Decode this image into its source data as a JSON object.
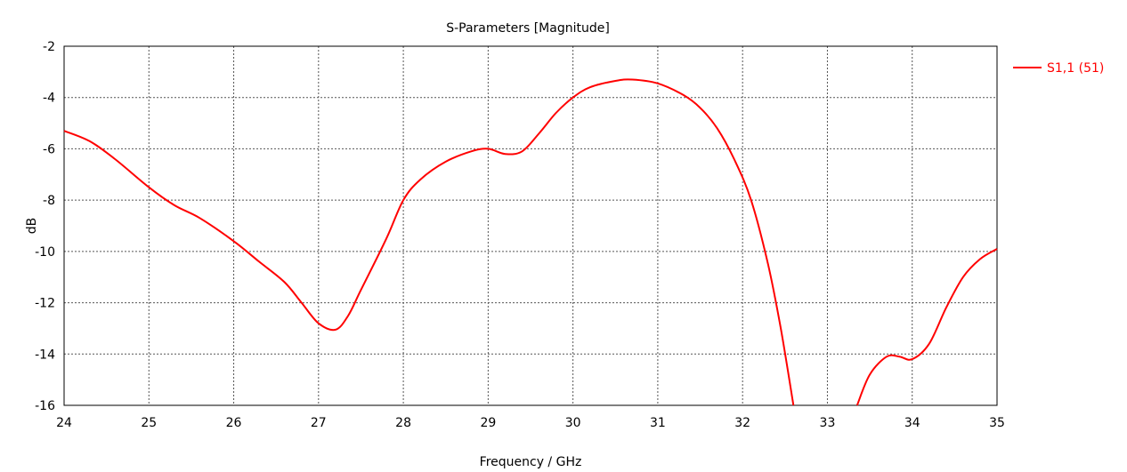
{
  "chart_data": {
    "type": "line",
    "title": "S-Parameters [Magnitude]",
    "xlabel": "Frequency / GHz",
    "ylabel": "dB",
    "xlim": [
      24,
      35
    ],
    "ylim": [
      -16,
      -2
    ],
    "xticks": [
      "24",
      "25",
      "26",
      "27",
      "28",
      "29",
      "30",
      "31",
      "32",
      "33",
      "34",
      "35"
    ],
    "yticks": [
      "-2",
      "-4",
      "-6",
      "-8",
      "-10",
      "-12",
      "-14",
      "-16"
    ],
    "grid": true,
    "legend_position": "right",
    "series": [
      {
        "name": "S1,1 (51)",
        "color": "#ff0000",
        "segments": [
          {
            "x": [
              24.0,
              24.3,
              24.6,
              25.0,
              25.3,
              25.6,
              26.0,
              26.3,
              26.6,
              26.8,
              27.0,
              27.2,
              27.35,
              27.5,
              27.8,
              28.0,
              28.2,
              28.5,
              28.8,
              29.0,
              29.2,
              29.4,
              29.6,
              29.8,
              30.0,
              30.2,
              30.5,
              30.7,
              31.0,
              31.3,
              31.5,
              31.7,
              31.9,
              32.1,
              32.3,
              32.45,
              32.6
            ],
            "y": [
              -5.3,
              -5.7,
              -6.4,
              -7.5,
              -8.2,
              -8.7,
              -9.6,
              -10.4,
              -11.2,
              -12.0,
              -12.8,
              -13.05,
              -12.5,
              -11.5,
              -9.5,
              -8.0,
              -7.2,
              -6.5,
              -6.1,
              -6.0,
              -6.2,
              -6.1,
              -5.4,
              -4.6,
              -4.0,
              -3.6,
              -3.35,
              -3.3,
              -3.45,
              -3.9,
              -4.4,
              -5.2,
              -6.4,
              -8.0,
              -10.5,
              -13.0,
              -16.0
            ]
          },
          {
            "x": [
              33.35,
              33.5,
              33.7,
              33.85,
              34.0,
              34.2,
              34.4,
              34.6,
              34.8,
              35.0
            ],
            "y": [
              -16.0,
              -14.8,
              -14.1,
              -14.1,
              -14.2,
              -13.6,
              -12.2,
              -11.0,
              -10.3,
              -9.9
            ]
          }
        ]
      }
    ]
  }
}
